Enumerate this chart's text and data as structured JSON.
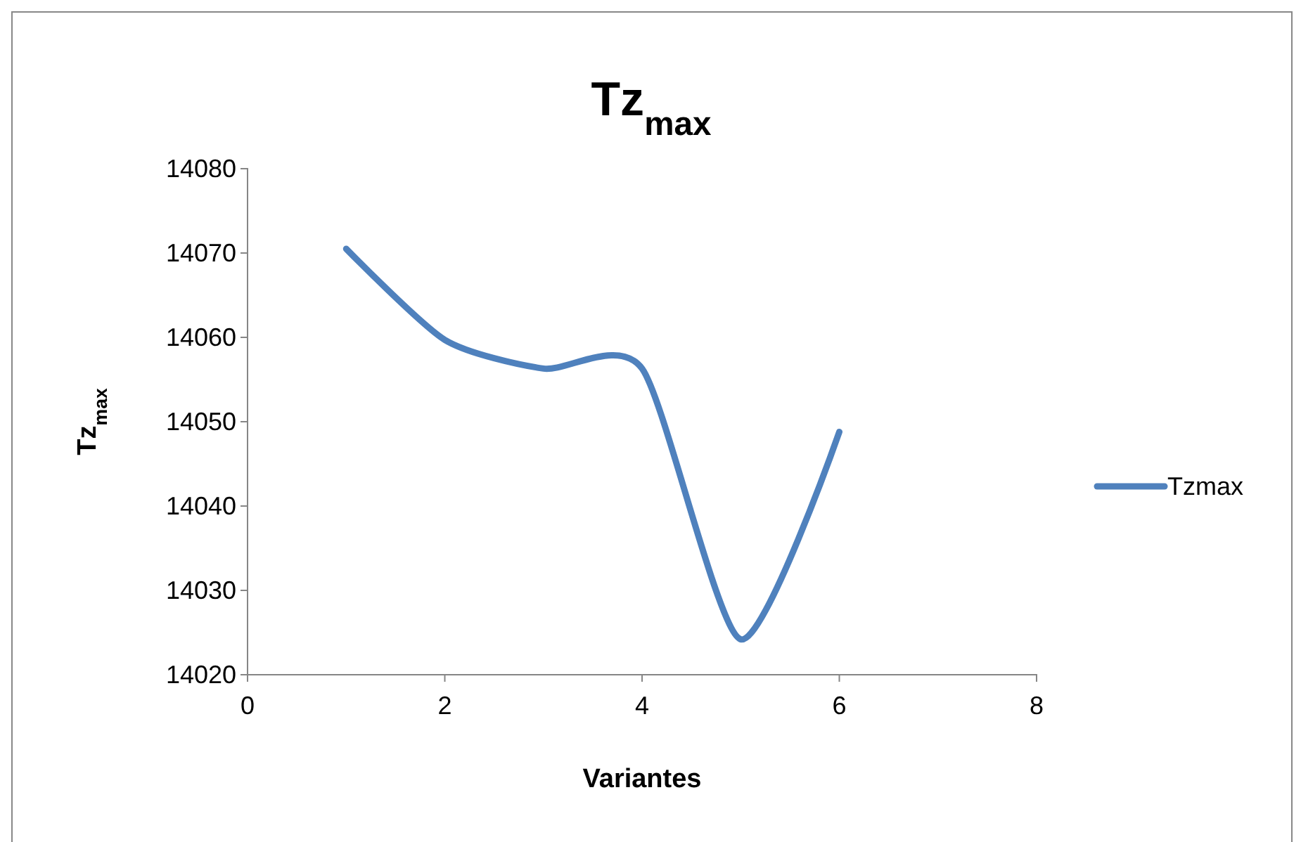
{
  "chart_data": {
    "type": "line",
    "title": "Tz$_{max}$",
    "xlabel": "Variantes",
    "ylabel": "Tz$_{max}$",
    "x": [
      1,
      2,
      3,
      4,
      5,
      6
    ],
    "series": [
      {
        "name": "Tzmax",
        "color": "#4f81bd",
        "values": [
          14070.5,
          14059.7,
          14056.3,
          14056.3,
          14024.2,
          14048.8
        ]
      }
    ],
    "xlim": [
      0,
      8
    ],
    "xticks": [
      0,
      2,
      4,
      6,
      8
    ],
    "ylim": [
      14020,
      14080
    ],
    "yticks": [
      14020,
      14030,
      14040,
      14050,
      14060,
      14070,
      14080
    ],
    "grid": false,
    "legend": "right",
    "marker": "none",
    "line_style": "solid"
  }
}
